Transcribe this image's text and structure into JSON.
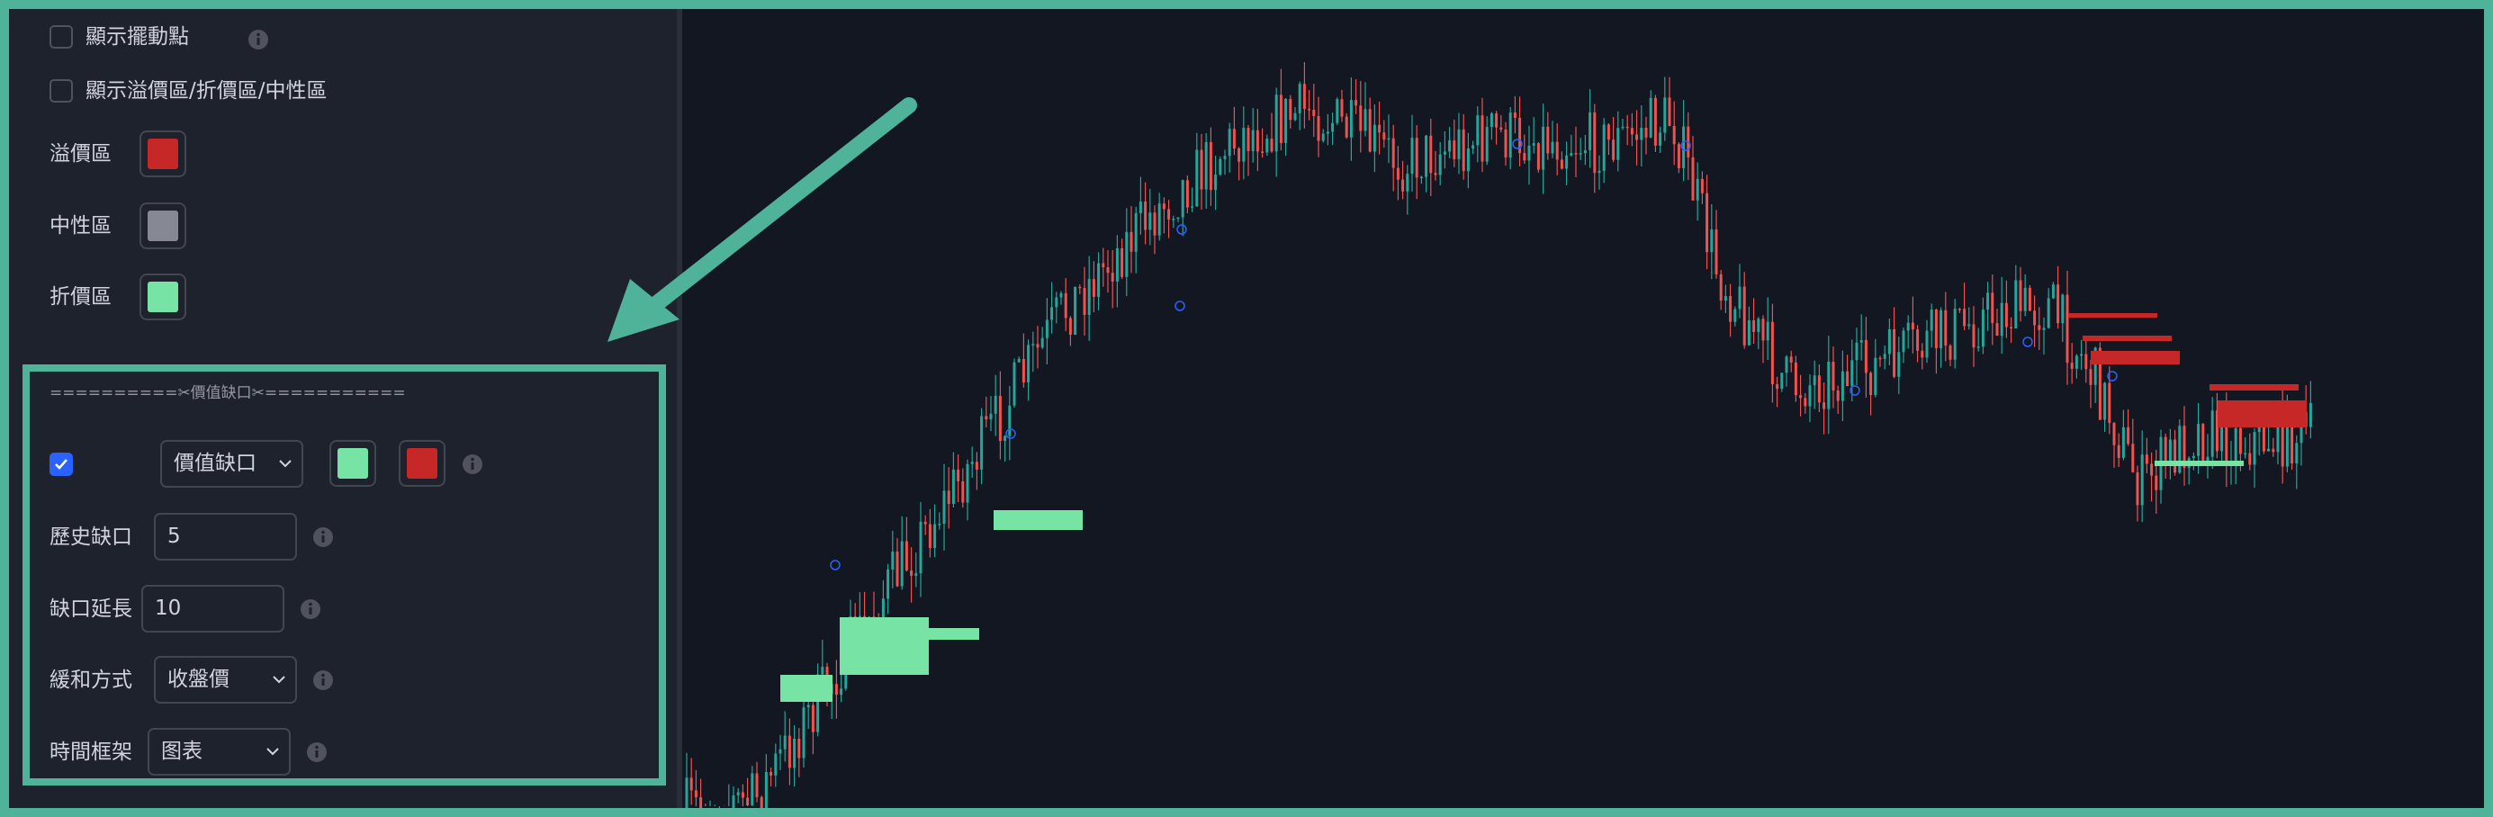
{
  "settings": {
    "swing_points": {
      "label": "顯示擺動點",
      "checked": false
    },
    "zones": {
      "label": "顯示溢價區/折價區/中性區",
      "checked": false
    },
    "premium": {
      "label": "溢價區",
      "color": "#c62828"
    },
    "equilibrium": {
      "label": "中性區",
      "color": "#868993"
    },
    "discount": {
      "label": "折價區",
      "color": "#77e3a4"
    }
  },
  "fvg": {
    "header": "==========✂價值缺口✂===========",
    "enabled": true,
    "type": "價值缺口",
    "bull_color": "#77e3a4",
    "bear_color": "#c62828",
    "history": {
      "label": "歷史缺口",
      "value": 5
    },
    "extend": {
      "label": "缺口延長",
      "value": 10
    },
    "mitigation": {
      "label": "緩和方式",
      "value": "收盤價"
    },
    "timeframe": {
      "label": "時間框架",
      "value": "图表"
    }
  }
}
